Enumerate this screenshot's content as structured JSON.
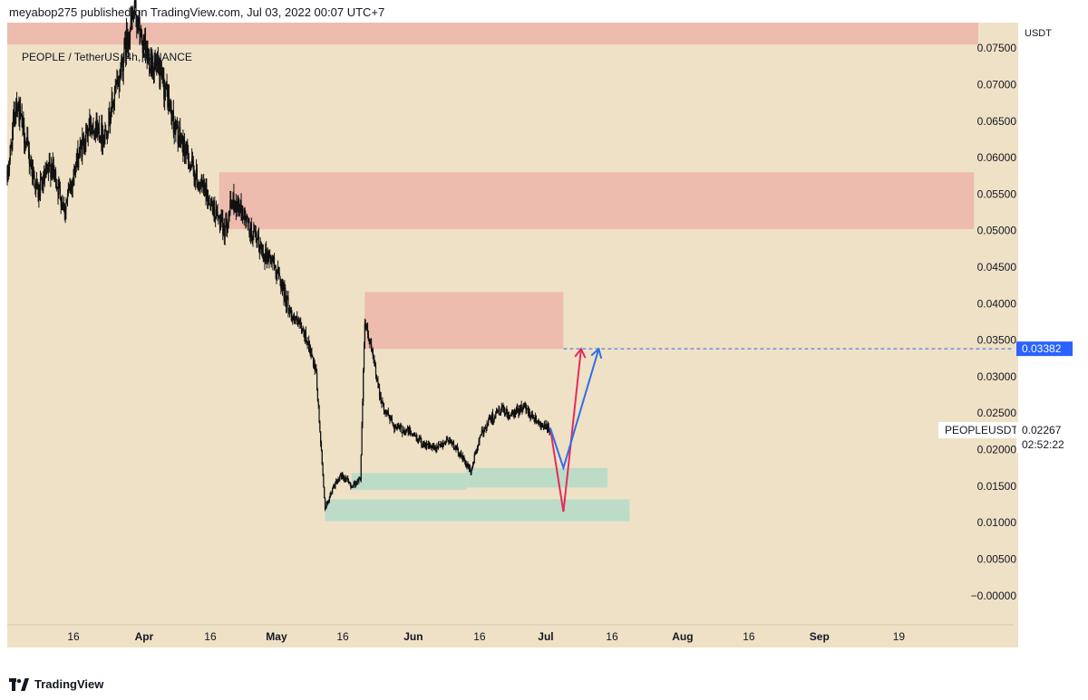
{
  "header": {
    "published_line": "meyabop275 published on TradingView.com, Jul 03, 2022 00:07 UTC+7"
  },
  "symbol_info": "PEOPLE / TetherUS, 4h, BINANCE",
  "footer": {
    "brand": "TradingView"
  },
  "colors": {
    "background": "#efe1c6",
    "supply_zone": "#edbcae",
    "demand_zone": "#bcdcc8",
    "candle": "#111111",
    "arrow_red": "#e32b5e",
    "arrow_blue": "#2f6ee8",
    "target_label": "#2962ff"
  },
  "chart_data": {
    "type": "candlestick",
    "title": "PEOPLE / TetherUS, 4h, BINANCE",
    "y_unit": "USDT",
    "ylim": [
      -0.004,
      0.0785
    ],
    "xlim": [
      "2022-03-01",
      "2022-10-15"
    ],
    "y_ticks": [
      "0.07500",
      "0.07000",
      "0.06500",
      "0.06000",
      "0.05500",
      "0.05000",
      "0.04500",
      "0.04000",
      "0.03500",
      "0.03000",
      "0.02500",
      "0.02000",
      "0.01500",
      "0.01000",
      "0.00500",
      "−0.00000"
    ],
    "x_ticks": [
      {
        "label": "16",
        "date": "2022-03-16"
      },
      {
        "label": "Apr",
        "date": "2022-04-01"
      },
      {
        "label": "16",
        "date": "2022-04-16"
      },
      {
        "label": "May",
        "date": "2022-05-01"
      },
      {
        "label": "16",
        "date": "2022-05-16"
      },
      {
        "label": "Jun",
        "date": "2022-06-01"
      },
      {
        "label": "16",
        "date": "2022-06-16"
      },
      {
        "label": "Jul",
        "date": "2022-07-01"
      },
      {
        "label": "16",
        "date": "2022-07-16"
      },
      {
        "label": "Aug",
        "date": "2022-08-01"
      },
      {
        "label": "16",
        "date": "2022-08-16"
      },
      {
        "label": "Sep",
        "date": "2022-09-01"
      },
      {
        "label": "19",
        "date": "2022-09-19"
      }
    ],
    "price_path": [
      [
        "2022-03-01",
        0.057
      ],
      [
        "2022-03-03",
        0.068
      ],
      [
        "2022-03-06",
        0.06
      ],
      [
        "2022-03-08",
        0.055
      ],
      [
        "2022-03-11",
        0.059
      ],
      [
        "2022-03-14",
        0.053
      ],
      [
        "2022-03-17",
        0.06
      ],
      [
        "2022-03-20",
        0.065
      ],
      [
        "2022-03-23",
        0.063
      ],
      [
        "2022-03-26",
        0.07
      ],
      [
        "2022-03-28",
        0.076
      ],
      [
        "2022-03-30",
        0.08
      ],
      [
        "2022-04-01",
        0.0745
      ],
      [
        "2022-04-03",
        0.073
      ],
      [
        "2022-04-06",
        0.069
      ],
      [
        "2022-04-08",
        0.064
      ],
      [
        "2022-04-11",
        0.06
      ],
      [
        "2022-04-13",
        0.057
      ],
      [
        "2022-04-16",
        0.054
      ],
      [
        "2022-04-19",
        0.05
      ],
      [
        "2022-04-21",
        0.054
      ],
      [
        "2022-04-23",
        0.053
      ],
      [
        "2022-04-25",
        0.05
      ],
      [
        "2022-04-28",
        0.047
      ],
      [
        "2022-04-30",
        0.046
      ],
      [
        "2022-05-02",
        0.043
      ],
      [
        "2022-05-04",
        0.039
      ],
      [
        "2022-05-06",
        0.037
      ],
      [
        "2022-05-08",
        0.035
      ],
      [
        "2022-05-10",
        0.03
      ],
      [
        "2022-05-11",
        0.021
      ],
      [
        "2022-05-12",
        0.012
      ],
      [
        "2022-05-14",
        0.015
      ],
      [
        "2022-05-16",
        0.0165
      ],
      [
        "2022-05-18",
        0.015
      ],
      [
        "2022-05-20",
        0.016
      ],
      [
        "2022-05-21",
        0.038
      ],
      [
        "2022-05-23",
        0.032
      ],
      [
        "2022-05-25",
        0.026
      ],
      [
        "2022-05-28",
        0.023
      ],
      [
        "2022-05-31",
        0.0225
      ],
      [
        "2022-06-03",
        0.021
      ],
      [
        "2022-06-06",
        0.02
      ],
      [
        "2022-06-09",
        0.0215
      ],
      [
        "2022-06-12",
        0.019
      ],
      [
        "2022-06-14",
        0.017
      ],
      [
        "2022-06-16",
        0.0215
      ],
      [
        "2022-06-18",
        0.024
      ],
      [
        "2022-06-21",
        0.0255
      ],
      [
        "2022-06-23",
        0.0245
      ],
      [
        "2022-06-26",
        0.026
      ],
      [
        "2022-06-29",
        0.024
      ],
      [
        "2022-07-01",
        0.023
      ],
      [
        "2022-07-02",
        0.0227
      ]
    ],
    "zones": [
      {
        "type": "supply",
        "x": [
          "2022-03-01",
          "2022-10-07"
        ],
        "y": [
          0.0755,
          0.0785
        ]
      },
      {
        "type": "supply",
        "x": [
          "2022-04-18",
          "2022-10-06"
        ],
        "y": [
          0.0502,
          0.058
        ]
      },
      {
        "type": "supply",
        "x": [
          "2022-05-21",
          "2022-07-05"
        ],
        "y": [
          0.0338,
          0.0416
        ]
      },
      {
        "type": "demand",
        "x": [
          "2022-05-18",
          "2022-06-13"
        ],
        "y": [
          0.0145,
          0.0168
        ]
      },
      {
        "type": "demand",
        "x": [
          "2022-06-13",
          "2022-07-15"
        ],
        "y": [
          0.0148,
          0.0175
        ]
      },
      {
        "type": "demand",
        "x": [
          "2022-05-12",
          "2022-07-20"
        ],
        "y": [
          0.0102,
          0.0132
        ]
      }
    ],
    "projections": [
      {
        "color": "red",
        "path": [
          [
            "2022-07-02",
            0.023
          ],
          [
            "2022-07-05",
            0.0115
          ],
          [
            "2022-07-09",
            0.0338
          ]
        ]
      },
      {
        "color": "blue",
        "path": [
          [
            "2022-07-02",
            0.023
          ],
          [
            "2022-07-05",
            0.0175
          ],
          [
            "2022-07-13",
            0.0338
          ]
        ]
      }
    ],
    "target_line": {
      "value": 0.03382,
      "label": "0.03382",
      "from": "2022-07-05"
    },
    "current_price": {
      "symbol": "PEOPLEUSDT",
      "price": "0.02267",
      "countdown": "02:52:22",
      "value": 0.02267
    }
  }
}
